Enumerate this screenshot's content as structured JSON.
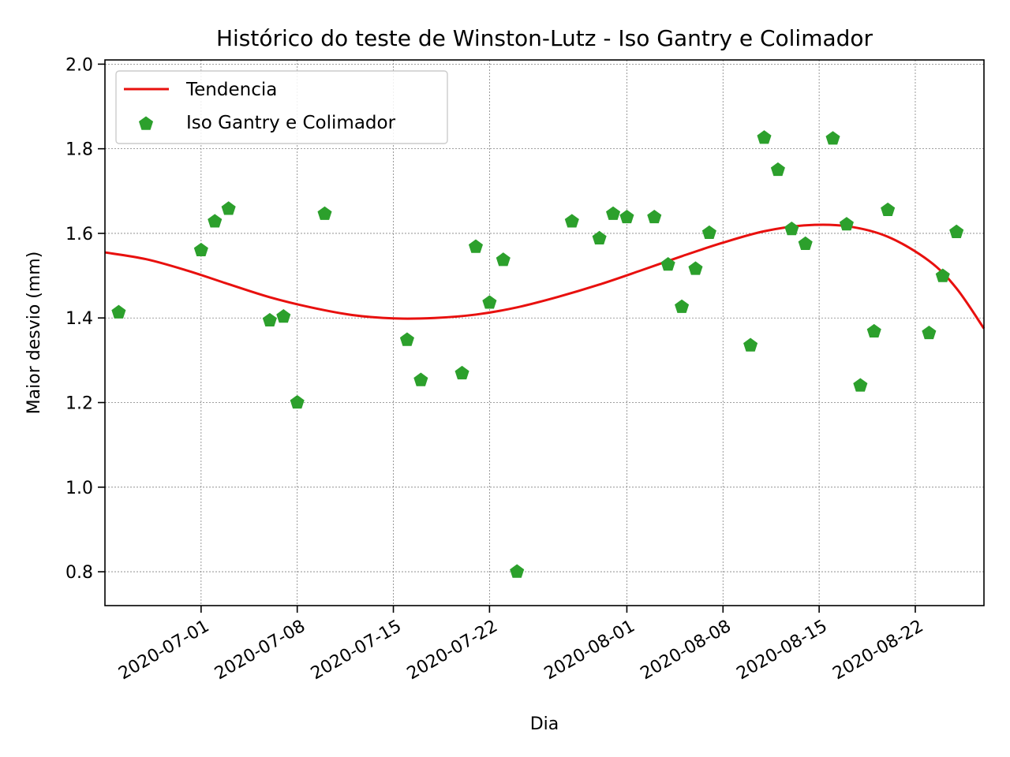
{
  "chart_data": {
    "type": "scatter",
    "title": "Histórico do teste de Winston-Lutz - Iso Gantry e Colimador",
    "xlabel": "Dia",
    "ylabel": "Maior desvio (mm)",
    "x_axis": {
      "scale": "date",
      "range": [
        "2020-06-24",
        "2020-08-27"
      ],
      "tick_labels": [
        "2020-07-01",
        "2020-07-08",
        "2020-07-15",
        "2020-07-22",
        "2020-08-01",
        "2020-08-08",
        "2020-08-15",
        "2020-08-22"
      ]
    },
    "y_axis": {
      "range": [
        0.72,
        2.01
      ],
      "tick_labels": [
        "0.8",
        "1.0",
        "1.2",
        "1.4",
        "1.6",
        "1.8",
        "2.0"
      ]
    },
    "grid": true,
    "legend": {
      "position": "top-left",
      "entries": [
        "Tendencia",
        "Iso Gantry e Colimador"
      ]
    },
    "series": [
      {
        "name": "Tendencia",
        "type": "line",
        "color": "#e8100e",
        "x": [
          "2020-06-24",
          "2020-06-27",
          "2020-06-30",
          "2020-07-03",
          "2020-07-06",
          "2020-07-09",
          "2020-07-12",
          "2020-07-15",
          "2020-07-18",
          "2020-07-21",
          "2020-07-24",
          "2020-07-27",
          "2020-07-30",
          "2020-08-02",
          "2020-08-05",
          "2020-08-08",
          "2020-08-11",
          "2020-08-14",
          "2020-08-17",
          "2020-08-20",
          "2020-08-23",
          "2020-08-25",
          "2020-08-27"
        ],
        "y": [
          1.555,
          1.539,
          1.512,
          1.48,
          1.449,
          1.425,
          1.407,
          1.399,
          1.4,
          1.408,
          1.425,
          1.45,
          1.479,
          1.512,
          1.546,
          1.578,
          1.605,
          1.619,
          1.617,
          1.592,
          1.535,
          1.47,
          1.375
        ]
      },
      {
        "name": "Iso Gantry e Colimador",
        "type": "scatter",
        "marker": "pentagon",
        "color": "#2ca02c",
        "x": [
          "2020-06-25",
          "2020-07-01",
          "2020-07-02",
          "2020-07-03",
          "2020-07-06",
          "2020-07-07",
          "2020-07-08",
          "2020-07-10",
          "2020-07-16",
          "2020-07-17",
          "2020-07-20",
          "2020-07-21",
          "2020-07-22",
          "2020-07-23",
          "2020-07-24",
          "2020-07-28",
          "2020-07-30",
          "2020-07-31",
          "2020-08-01",
          "2020-08-03",
          "2020-08-04",
          "2020-08-05",
          "2020-08-06",
          "2020-08-07",
          "2020-08-10",
          "2020-08-11",
          "2020-08-12",
          "2020-08-13",
          "2020-08-14",
          "2020-08-16",
          "2020-08-17",
          "2020-08-18",
          "2020-08-19",
          "2020-08-20",
          "2020-08-23",
          "2020-08-24",
          "2020-08-25"
        ],
        "y": [
          1.415,
          1.562,
          1.63,
          1.66,
          1.396,
          1.405,
          1.202,
          1.648,
          1.35,
          1.255,
          1.271,
          1.57,
          1.438,
          1.539,
          0.802,
          1.63,
          1.59,
          1.648,
          1.64,
          1.64,
          1.528,
          1.428,
          1.518,
          1.603,
          1.337,
          1.828,
          1.752,
          1.612,
          1.577,
          1.826,
          1.623,
          1.242,
          1.37,
          1.657,
          1.366,
          1.501,
          1.605
        ]
      }
    ]
  }
}
